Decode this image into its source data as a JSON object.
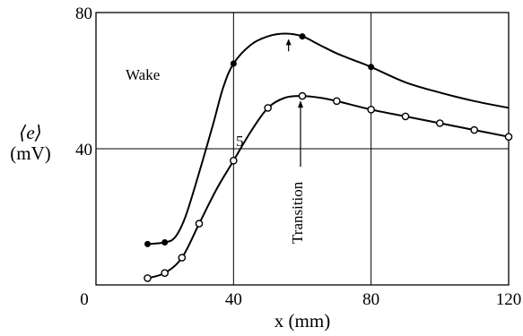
{
  "chart_data": {
    "type": "line",
    "title": "",
    "xlabel": "x (mm)",
    "ylabel_line1": "⟨e⟩",
    "ylabel_line2": "(mV)",
    "xlim": [
      0,
      120
    ],
    "ylim": [
      0,
      80
    ],
    "x_ticks": [
      0,
      40,
      80,
      120
    ],
    "y_ticks": [
      40,
      80
    ],
    "grid": true,
    "series": [
      {
        "marker": "filled-circle",
        "points": [
          [
            15,
            12
          ],
          [
            20,
            12.5
          ],
          [
            40,
            65
          ],
          [
            60,
            73
          ],
          [
            80,
            64
          ]
        ],
        "curve": [
          [
            15,
            12
          ],
          [
            20,
            12.5
          ],
          [
            23,
            14
          ],
          [
            26,
            20
          ],
          [
            30,
            33
          ],
          [
            34,
            47
          ],
          [
            37,
            58
          ],
          [
            40,
            65
          ],
          [
            45,
            70.5
          ],
          [
            50,
            73
          ],
          [
            55,
            73.8
          ],
          [
            60,
            73
          ],
          [
            65,
            70.5
          ],
          [
            70,
            68
          ],
          [
            75,
            66
          ],
          [
            80,
            64
          ],
          [
            90,
            59.5
          ],
          [
            100,
            56.5
          ],
          [
            110,
            54
          ],
          [
            120,
            52
          ]
        ]
      },
      {
        "marker": "open-circle",
        "points": [
          [
            15,
            2
          ],
          [
            20,
            3.5
          ],
          [
            25,
            8
          ],
          [
            30,
            18
          ],
          [
            40,
            36.5
          ],
          [
            50,
            52
          ],
          [
            60,
            55.5
          ],
          [
            70,
            54
          ],
          [
            80,
            51.5
          ],
          [
            90,
            49.5
          ],
          [
            100,
            47.5
          ],
          [
            110,
            45.5
          ],
          [
            120,
            43.5
          ]
        ],
        "curve": [
          [
            15,
            2
          ],
          [
            20,
            3.5
          ],
          [
            25,
            8
          ],
          [
            30,
            18
          ],
          [
            35,
            28
          ],
          [
            40,
            36.5
          ],
          [
            45,
            45
          ],
          [
            50,
            52
          ],
          [
            55,
            55
          ],
          [
            60,
            55.5
          ],
          [
            65,
            55
          ],
          [
            70,
            54
          ],
          [
            80,
            51.5
          ],
          [
            90,
            49.5
          ],
          [
            100,
            47.5
          ],
          [
            110,
            45.5
          ],
          [
            120,
            43.5
          ]
        ]
      }
    ],
    "annotations": {
      "wake": "Wake",
      "transition": "Transition",
      "five": "5"
    }
  }
}
